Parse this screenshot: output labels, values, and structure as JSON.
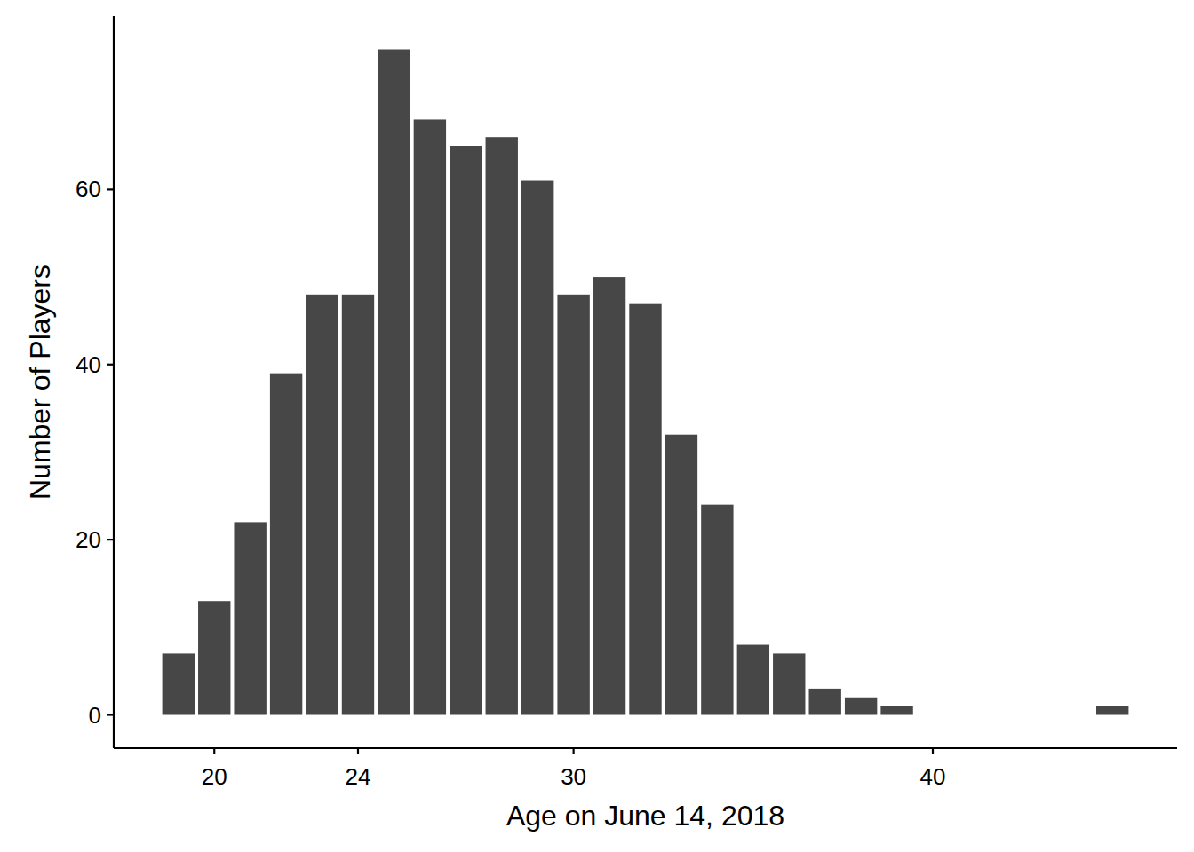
{
  "chart_data": {
    "type": "bar",
    "x_label": "Age on June 14, 2018",
    "y_label": "Number of Players",
    "x": [
      19,
      20,
      21,
      22,
      23,
      24,
      25,
      26,
      27,
      28,
      29,
      30,
      31,
      32,
      33,
      34,
      35,
      36,
      37,
      38,
      39,
      45
    ],
    "values": [
      7,
      13,
      22,
      39,
      48,
      48,
      76,
      68,
      65,
      66,
      61,
      48,
      50,
      47,
      32,
      24,
      8,
      7,
      3,
      2,
      1,
      1
    ],
    "color": "#474747",
    "xlim": [
      17.2,
      46.8
    ],
    "xticks": [
      20,
      24,
      30,
      40
    ],
    "ylim": [
      -3.8,
      79.8
    ],
    "yticks": [
      0,
      20,
      40,
      60
    ],
    "grid": false
  }
}
